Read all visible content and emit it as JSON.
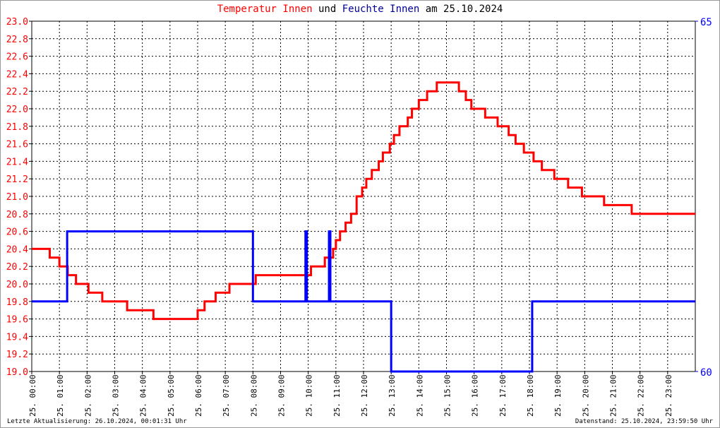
{
  "title": {
    "part1": "Temperatur Innen",
    "part2": "und",
    "part3": "Feuchte Innen",
    "part4": "am 25.10.2024"
  },
  "footer": {
    "left": "Letzte Aktualisierung: 26.10.2024, 00:01:31 Uhr",
    "right": "Datenstand: 25.10.2024, 23:59:50 Uhr"
  },
  "colors": {
    "temperature": "#ff0000",
    "humidity": "#0000ff",
    "title_humidity": "#000099",
    "grid": "#000000"
  },
  "chart_data": {
    "type": "line",
    "title": "Temperatur Innen und Feuchte Innen am 25.10.2024",
    "grid": true,
    "x_range_hours": [
      0,
      24
    ],
    "x_tick_labels": [
      "25. 00:00",
      "25. 01:00",
      "25. 02:00",
      "25. 03:00",
      "25. 04:00",
      "25. 05:00",
      "25. 06:00",
      "25. 07:00",
      "25. 08:00",
      "25. 09:00",
      "25. 10:00",
      "25. 11:00",
      "25. 12:00",
      "25. 13:00",
      "25. 14:00",
      "25. 15:00",
      "25. 16:00",
      "25. 17:00",
      "25. 18:00",
      "25. 19:00",
      "25. 20:00",
      "25. 21:00",
      "25. 22:00",
      "25. 23:00"
    ],
    "y_left": {
      "range": [
        19.0,
        23.0
      ],
      "ticks": [
        "19.0",
        "19.2",
        "19.4",
        "19.6",
        "19.8",
        "20.0",
        "20.2",
        "20.4",
        "20.6",
        "20.8",
        "21.0",
        "21.2",
        "21.4",
        "21.6",
        "21.8",
        "22.0",
        "22.2",
        "22.4",
        "22.6",
        "22.8",
        "23.0"
      ]
    },
    "y_right": {
      "range": [
        60,
        65
      ],
      "ticks": [
        "60",
        "65"
      ]
    },
    "series": [
      {
        "name": "Temperatur Innen",
        "axis": "left",
        "step": true,
        "points": [
          [
            0,
            20.4
          ],
          [
            0.65,
            20.3
          ],
          [
            1.0,
            20.2
          ],
          [
            1.3,
            20.1
          ],
          [
            1.6,
            20.0
          ],
          [
            2.05,
            19.9
          ],
          [
            2.55,
            19.8
          ],
          [
            3.45,
            19.7
          ],
          [
            4.4,
            19.6
          ],
          [
            6.0,
            19.7
          ],
          [
            6.25,
            19.8
          ],
          [
            6.65,
            19.9
          ],
          [
            7.15,
            20.0
          ],
          [
            8.1,
            20.1
          ],
          [
            10.1,
            20.2
          ],
          [
            10.6,
            20.3
          ],
          [
            10.9,
            20.4
          ],
          [
            11.0,
            20.5
          ],
          [
            11.15,
            20.6
          ],
          [
            11.35,
            20.7
          ],
          [
            11.55,
            20.8
          ],
          [
            11.75,
            21.0
          ],
          [
            11.95,
            21.1
          ],
          [
            12.1,
            21.2
          ],
          [
            12.3,
            21.3
          ],
          [
            12.55,
            21.4
          ],
          [
            12.7,
            21.5
          ],
          [
            12.95,
            21.6
          ],
          [
            13.1,
            21.7
          ],
          [
            13.3,
            21.8
          ],
          [
            13.6,
            21.9
          ],
          [
            13.75,
            22.0
          ],
          [
            14.0,
            22.1
          ],
          [
            14.3,
            22.2
          ],
          [
            14.65,
            22.3
          ],
          [
            15.45,
            22.2
          ],
          [
            15.7,
            22.1
          ],
          [
            15.9,
            22.0
          ],
          [
            16.4,
            21.9
          ],
          [
            16.85,
            21.8
          ],
          [
            17.25,
            21.7
          ],
          [
            17.5,
            21.6
          ],
          [
            17.8,
            21.5
          ],
          [
            18.15,
            21.4
          ],
          [
            18.45,
            21.3
          ],
          [
            18.9,
            21.2
          ],
          [
            19.4,
            21.1
          ],
          [
            19.9,
            21.0
          ],
          [
            20.7,
            20.9
          ],
          [
            21.7,
            20.8
          ],
          [
            24,
            20.8
          ]
        ]
      },
      {
        "name": "Feuchte Innen",
        "axis": "right",
        "step": true,
        "points": [
          [
            0,
            61
          ],
          [
            1.28,
            62
          ],
          [
            8.0,
            61
          ],
          [
            9.9,
            62
          ],
          [
            9.95,
            61
          ],
          [
            10.75,
            62
          ],
          [
            10.8,
            61
          ],
          [
            13.0,
            60
          ],
          [
            18.1,
            61
          ],
          [
            24,
            61
          ]
        ]
      }
    ]
  }
}
